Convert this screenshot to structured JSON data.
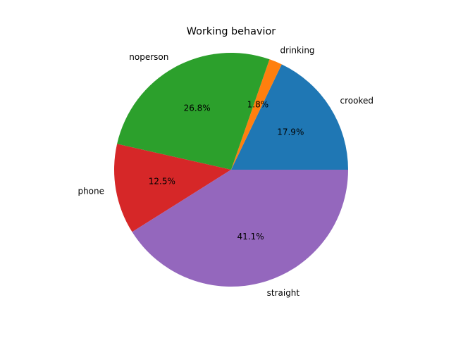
{
  "chart_data": {
    "type": "pie",
    "title": "Working behavior",
    "slices": [
      {
        "label": "crooked",
        "value": 17.9,
        "pct_label": "17.9%",
        "color": "#1f77b4"
      },
      {
        "label": "drinking",
        "value": 1.8,
        "pct_label": "1.8%",
        "color": "#ff7f0e"
      },
      {
        "label": "noperson",
        "value": 26.8,
        "pct_label": "26.8%",
        "color": "#2ca02c"
      },
      {
        "label": "phone",
        "value": 12.5,
        "pct_label": "12.5%",
        "color": "#d62728"
      },
      {
        "label": "straight",
        "value": 41.1,
        "pct_label": "41.1%",
        "color": "#9467bd"
      }
    ],
    "start_angle_deg": 0,
    "direction": "counterclockwise"
  }
}
